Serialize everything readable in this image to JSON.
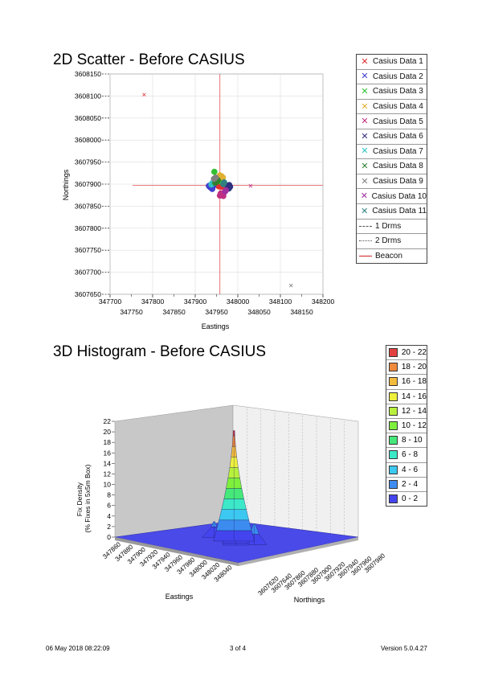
{
  "page": {
    "footer_left": "06 May 2018 08:22:09",
    "footer_center": "3 of 4",
    "footer_right": "Version 5.0.4.27"
  },
  "scatter_legend": [
    {
      "label": "Casius Data 1",
      "color": "#e03030",
      "kind": "marker"
    },
    {
      "label": "Casius Data 2",
      "color": "#4040d0",
      "kind": "marker"
    },
    {
      "label": "Casius Data 3",
      "color": "#30c030",
      "kind": "marker"
    },
    {
      "label": "Casius Data 4",
      "color": "#e0b030",
      "kind": "marker"
    },
    {
      "label": "Casius Data 5",
      "color": "#c03080",
      "kind": "marker"
    },
    {
      "label": "Casius Data 6",
      "color": "#303080",
      "kind": "marker"
    },
    {
      "label": "Casius Data 7",
      "color": "#30c0c0",
      "kind": "marker"
    },
    {
      "label": "Casius Data 8",
      "color": "#308030",
      "kind": "marker"
    },
    {
      "label": "Casius Data 9",
      "color": "#808080",
      "kind": "marker"
    },
    {
      "label": "Casius Data 10",
      "color": "#a030a0",
      "kind": "marker"
    },
    {
      "label": "Casius Data 11",
      "color": "#308080",
      "kind": "marker"
    },
    {
      "label": "1 Drms",
      "color": "#555555",
      "kind": "dashed"
    },
    {
      "label": "2 Drms",
      "color": "#555555",
      "kind": "dashdot"
    },
    {
      "label": "Beacon",
      "color": "#d02020",
      "kind": "solid"
    }
  ],
  "hist_legend": [
    {
      "label": "20 - 22",
      "color": "#e34040"
    },
    {
      "label": "18 - 20",
      "color": "#f08a3c"
    },
    {
      "label": "16 - 18",
      "color": "#f4bc3c"
    },
    {
      "label": "14 - 16",
      "color": "#eef03c"
    },
    {
      "label": "12 - 14",
      "color": "#b8f03c"
    },
    {
      "label": "10 - 12",
      "color": "#7ef03c"
    },
    {
      "label": "8 - 10",
      "color": "#46e87a"
    },
    {
      "label": "6 - 8",
      "color": "#3ce8c8"
    },
    {
      "label": "4 - 6",
      "color": "#3cc8f0"
    },
    {
      "label": "2 - 4",
      "color": "#3c8cf0"
    },
    {
      "label": "0 - 2",
      "color": "#4444ee"
    }
  ],
  "chart_data": [
    {
      "type": "scatter",
      "title": "2D Scatter - Before CASIUS",
      "xlabel": "Eastings",
      "ylabel": "Northings",
      "xlim": [
        347700,
        348200
      ],
      "ylim": [
        3607650,
        3608150
      ],
      "x_ticks_upper": [
        "347700",
        "347800",
        "347900",
        "348000",
        "348100",
        "348200"
      ],
      "x_ticks_lower": [
        "347750",
        "347850",
        "347950",
        "348050",
        "348150"
      ],
      "y_ticks": [
        "3608150",
        "3608100",
        "3608050",
        "3608000",
        "3607950",
        "3607900",
        "3607850",
        "3607800",
        "3607750",
        "3607700",
        "3607650"
      ],
      "grid": true,
      "beacon": {
        "x": 347958,
        "y": 3607897
      },
      "series": [
        {
          "name": "Casius Data 1",
          "color": "#e03030",
          "points": [
            [
              347958,
              3607897
            ],
            [
              347960,
              3607899
            ],
            [
              347955,
              3607895
            ],
            [
              347957,
              3607901
            ],
            [
              347962,
              3607894
            ],
            [
              347780,
              3608103
            ]
          ]
        },
        {
          "name": "Casius Data 2",
          "color": "#4040d0",
          "points": [
            [
              347935,
              3607893
            ],
            [
              347938,
              3607891
            ],
            [
              347932,
              3607896
            ],
            [
              347940,
              3607889
            ],
            [
              347936,
              3607898
            ],
            [
              347942,
              3607895
            ]
          ]
        },
        {
          "name": "Casius Data 3",
          "color": "#30c030",
          "points": [
            [
              347958,
              3607912
            ],
            [
              347955,
              3607908
            ],
            [
              347962,
              3607910
            ],
            [
              347952,
              3607914
            ],
            [
              347945,
              3607928
            ],
            [
              347960,
              3607906
            ]
          ]
        },
        {
          "name": "Casius Data 4",
          "color": "#e0b030",
          "points": [
            [
              347962,
              3607918
            ],
            [
              347958,
              3607920
            ],
            [
              347965,
              3607915
            ]
          ]
        },
        {
          "name": "Casius Data 5",
          "color": "#c03080",
          "points": [
            [
              347962,
              3607876
            ],
            [
              347965,
              3607878
            ],
            [
              347958,
              3607874
            ],
            [
              347966,
              3607873
            ],
            [
              347960,
              3607879
            ],
            [
              348030,
              3607896
            ]
          ]
        },
        {
          "name": "Casius Data 6",
          "color": "#303080",
          "points": [
            [
              347978,
              3607895
            ],
            [
              347980,
              3607898
            ],
            [
              347976,
              3607892
            ],
            [
              347982,
              3607894
            ],
            [
              347979,
              3607890
            ]
          ]
        },
        {
          "name": "Casius Data 7",
          "color": "#30c0c0",
          "points": [
            [
              347940,
              3607902
            ],
            [
              347943,
              3607905
            ],
            [
              347938,
              3607899
            ]
          ]
        },
        {
          "name": "Casius Data 8",
          "color": "#308030",
          "points": [
            [
              347950,
              3607905
            ],
            [
              347953,
              3607909
            ],
            [
              347947,
              3607903
            ]
          ]
        },
        {
          "name": "Casius Data 9",
          "color": "#808080",
          "points": [
            [
              347944,
              3607912
            ],
            [
              347948,
              3607915
            ],
            [
              348125,
              3607670
            ]
          ]
        },
        {
          "name": "Casius Data 10",
          "color": "#a030a0",
          "points": [
            [
              347972,
              3607886
            ],
            [
              347970,
              3607883
            ]
          ]
        },
        {
          "name": "Casius Data 11",
          "color": "#308080",
          "points": [
            [
              347966,
              3607900
            ],
            [
              347968,
              3607904
            ]
          ]
        }
      ]
    },
    {
      "type": "heatmap",
      "title": "3D Histogram - Before CASIUS",
      "xlabel": "Eastings",
      "ylabel": "Northings",
      "zlabel": "Fix Density (% Fixes in 5x5m Box)",
      "zlim": [
        0,
        22
      ],
      "z_ticks": [
        "22",
        "20",
        "18",
        "16",
        "14",
        "12",
        "10",
        "8",
        "6",
        "4",
        "2",
        "0"
      ],
      "x_ticks": [
        "347860",
        "347880",
        "347900",
        "347920",
        "347940",
        "347960",
        "347980",
        "348000",
        "348020",
        "348040"
      ],
      "y_ticks": [
        "3607620",
        "3607640",
        "3607860",
        "3607880",
        "3607900",
        "3607920",
        "3607940",
        "3607960",
        "3607980"
      ],
      "peaks": [
        {
          "easting": 347955,
          "northing": 3607897,
          "value": 21
        },
        {
          "easting": 347945,
          "northing": 3607903,
          "value": 9
        },
        {
          "easting": 347965,
          "northing": 3607890,
          "value": 7
        },
        {
          "easting": 347975,
          "northing": 3607880,
          "value": 5
        },
        {
          "easting": 347935,
          "northing": 3607910,
          "value": 5
        },
        {
          "easting": 347985,
          "northing": 3607900,
          "value": 4
        },
        {
          "easting": 347925,
          "northing": 3607895,
          "value": 3
        }
      ]
    }
  ]
}
